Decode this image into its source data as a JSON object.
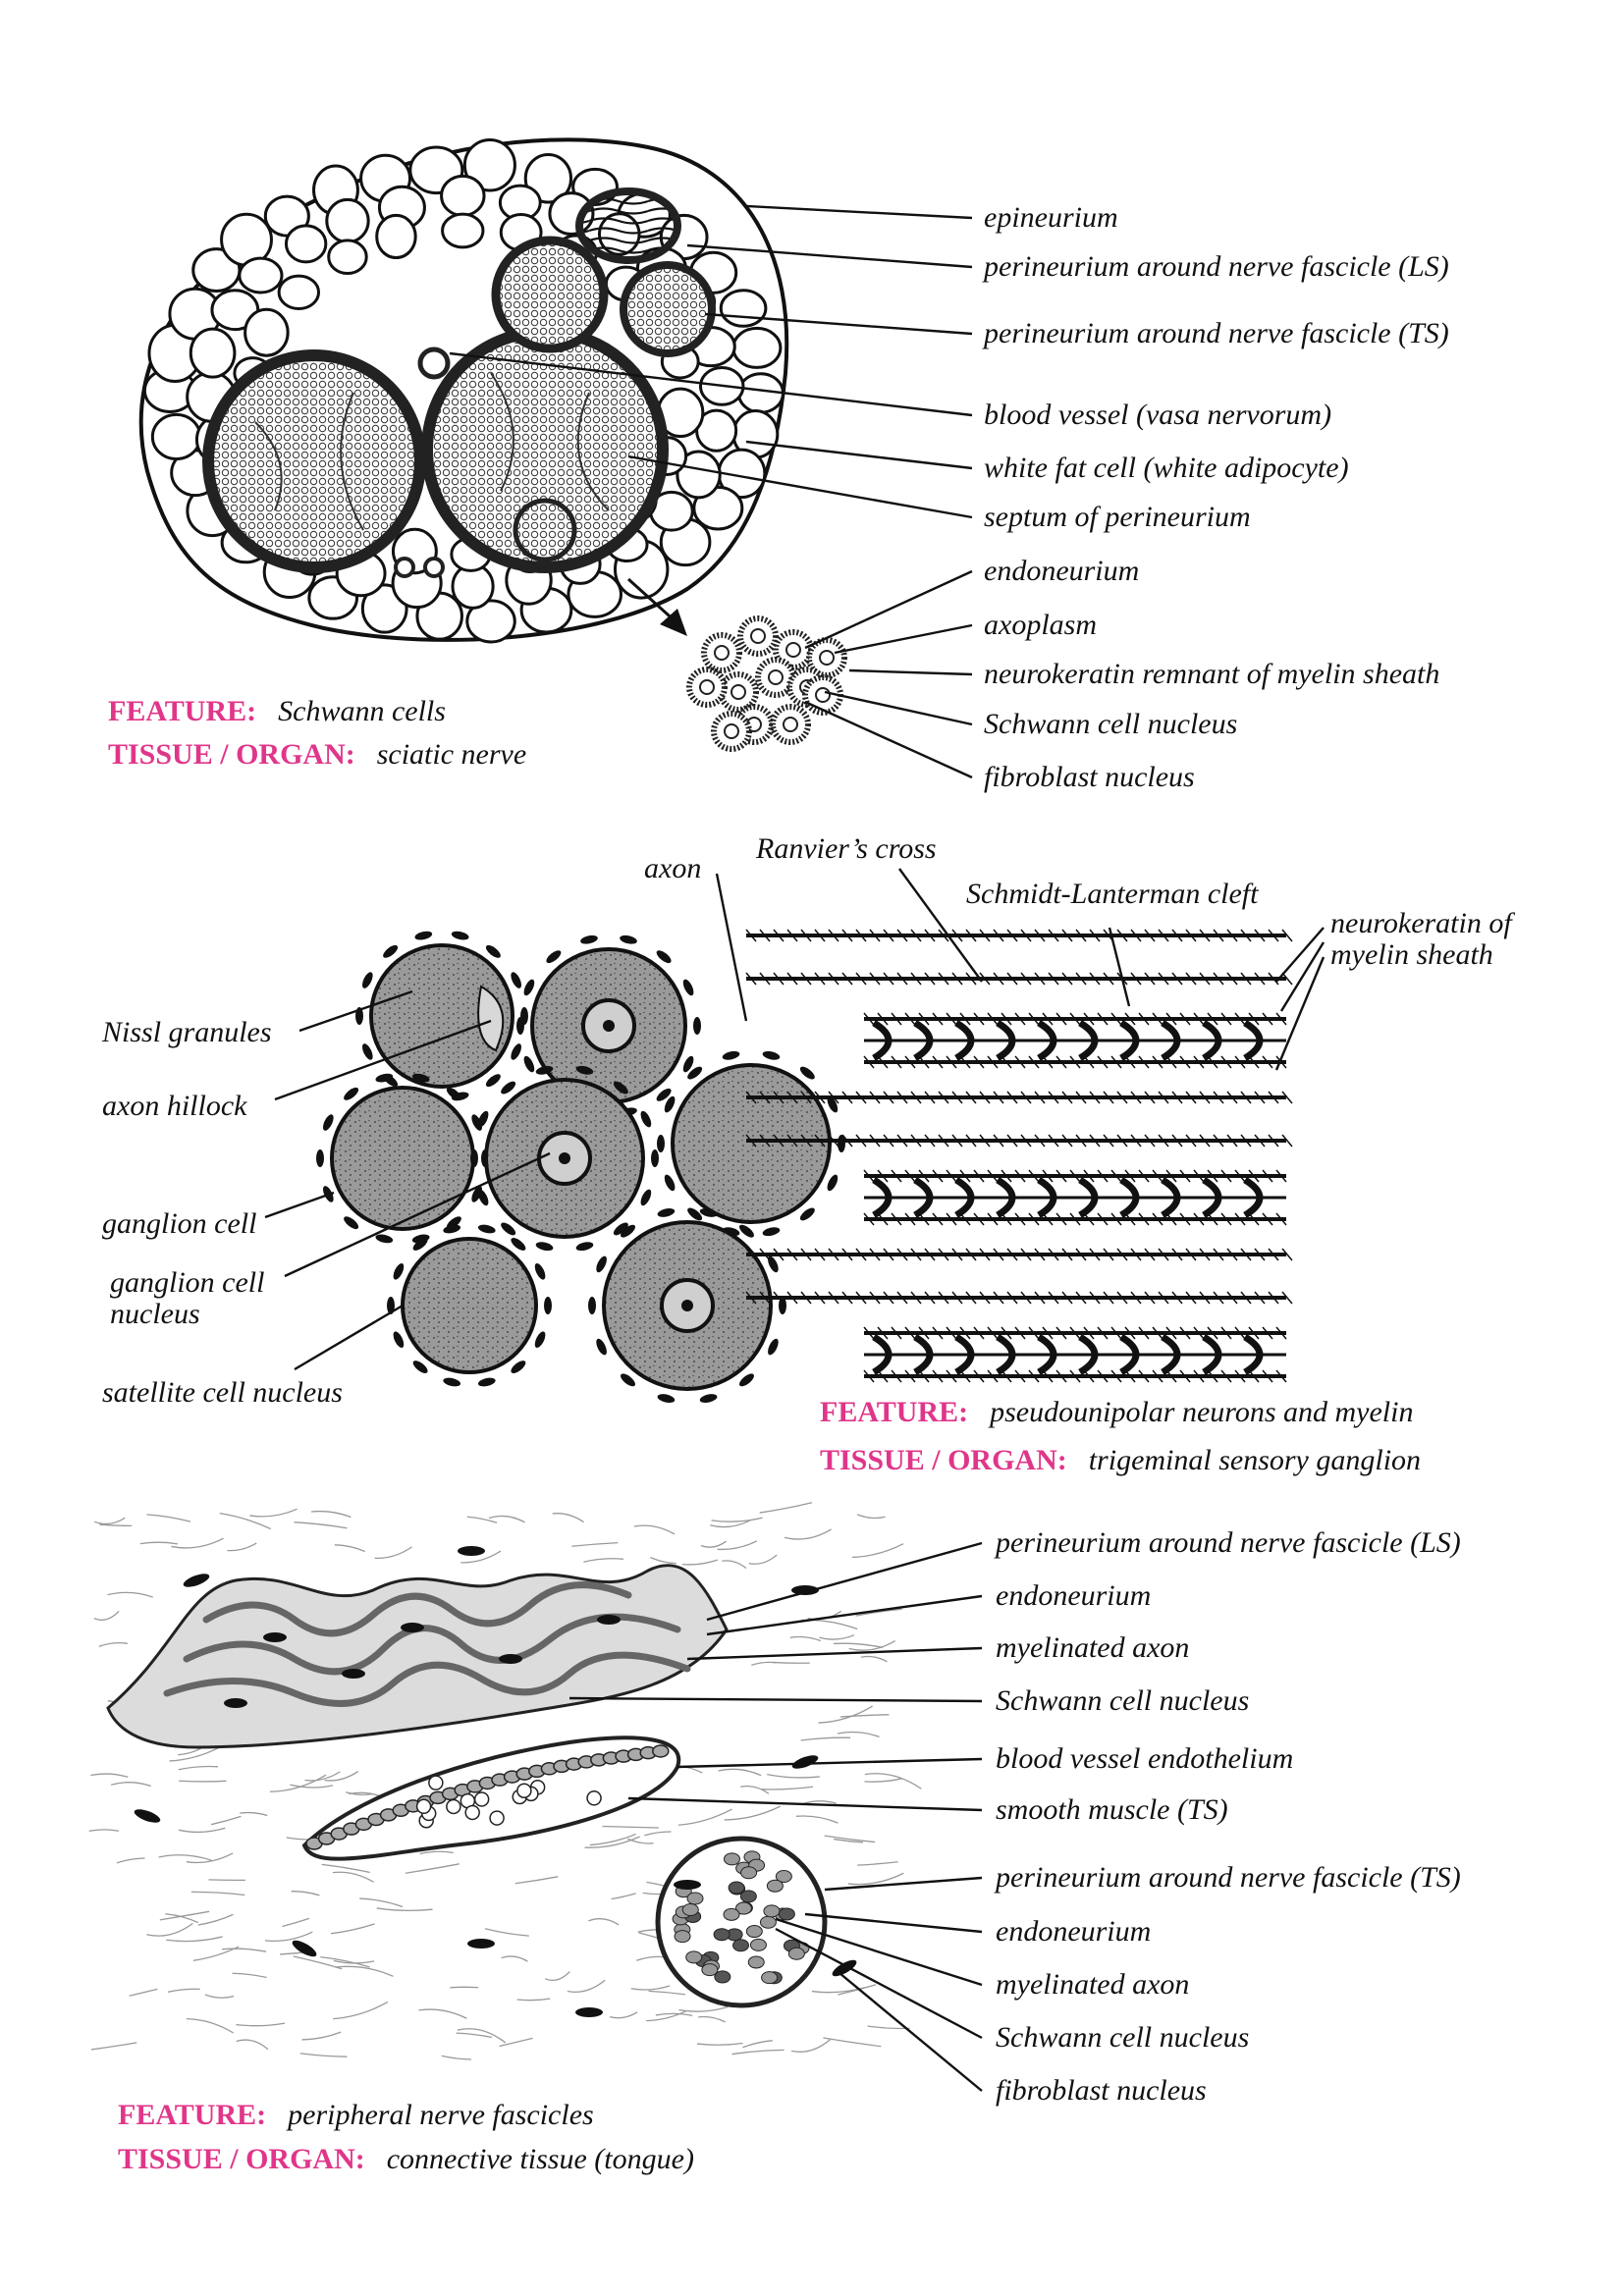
{
  "accent_color": "#e0368a",
  "panels": [
    {
      "feature_key": "FEATURE:",
      "feature_value": "Schwann cells",
      "tissue_key": "TISSUE / ORGAN:",
      "tissue_value": "sciatic nerve",
      "labels": [
        "epineurium",
        "perineurium around nerve fascicle (LS)",
        "perineurium around nerve fascicle (TS)",
        "blood vessel (vasa nervorum)",
        "white fat cell (white adipocyte)",
        "septum of perineurium",
        "endoneurium",
        "axoplasm",
        "neurokeratin remnant of myelin sheath",
        "Schwann cell nucleus",
        "fibroblast nucleus"
      ]
    },
    {
      "feature_key": "FEATURE:",
      "feature_value": "pseudounipolar neurons and myelin",
      "tissue_key": "TISSUE / ORGAN:",
      "tissue_value": "trigeminal sensory ganglion",
      "labels": [
        "axon",
        "Ranvier’s cross",
        "Schmidt-Lanterman cleft",
        "neurokeratin of",
        "myelin sheath",
        "Nissl granules",
        "axon hillock",
        "ganglion cell",
        "ganglion cell",
        "nucleus",
        "satellite cell nucleus"
      ]
    },
    {
      "feature_key": "FEATURE:",
      "feature_value": "peripheral nerve fascicles",
      "tissue_key": "TISSUE / ORGAN:",
      "tissue_value": "connective tissue (tongue)",
      "labels": [
        "perineurium around nerve fascicle (LS)",
        "endoneurium",
        "myelinated axon",
        "Schwann cell nucleus",
        "blood vessel endothelium",
        "smooth muscle (TS)",
        "perineurium around nerve fascicle (TS)",
        "endoneurium",
        "myelinated axon",
        "Schwann cell nucleus",
        "fibroblast nucleus"
      ]
    }
  ]
}
